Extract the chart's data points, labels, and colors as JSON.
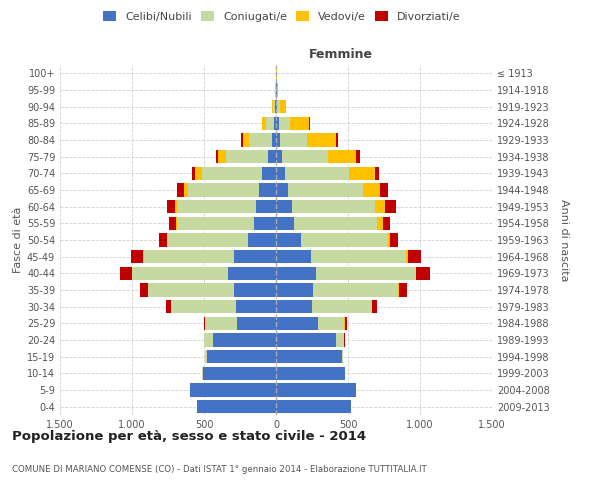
{
  "age_groups": [
    "0-4",
    "5-9",
    "10-14",
    "15-19",
    "20-24",
    "25-29",
    "30-34",
    "35-39",
    "40-44",
    "45-49",
    "50-54",
    "55-59",
    "60-64",
    "65-69",
    "70-74",
    "75-79",
    "80-84",
    "85-89",
    "90-94",
    "95-99",
    "100+"
  ],
  "birth_years": [
    "2009-2013",
    "2004-2008",
    "1999-2003",
    "1994-1998",
    "1989-1993",
    "1984-1988",
    "1979-1983",
    "1974-1978",
    "1969-1973",
    "1964-1968",
    "1959-1963",
    "1954-1958",
    "1949-1953",
    "1944-1948",
    "1939-1943",
    "1934-1938",
    "1929-1933",
    "1924-1928",
    "1919-1923",
    "1914-1918",
    "≤ 1913"
  ],
  "male_celibi": [
    550,
    600,
    510,
    480,
    440,
    270,
    280,
    290,
    330,
    290,
    195,
    155,
    140,
    120,
    100,
    55,
    25,
    15,
    8,
    3,
    2
  ],
  "male_coniugati": [
    0,
    0,
    2,
    10,
    60,
    220,
    450,
    600,
    670,
    630,
    560,
    530,
    545,
    490,
    415,
    295,
    160,
    55,
    15,
    3,
    1
  ],
  "male_vedovi": [
    0,
    0,
    0,
    0,
    1,
    2,
    1,
    2,
    2,
    5,
    5,
    10,
    15,
    30,
    50,
    50,
    45,
    25,
    5,
    1,
    0
  ],
  "male_divorziati": [
    0,
    0,
    0,
    1,
    2,
    10,
    30,
    50,
    80,
    80,
    50,
    45,
    55,
    45,
    20,
    20,
    15,
    5,
    1,
    0,
    0
  ],
  "female_celibi": [
    520,
    555,
    480,
    455,
    415,
    290,
    250,
    260,
    280,
    240,
    175,
    125,
    110,
    85,
    65,
    40,
    25,
    20,
    10,
    5,
    2
  ],
  "female_coniugati": [
    0,
    0,
    2,
    10,
    55,
    185,
    415,
    590,
    690,
    665,
    600,
    575,
    575,
    520,
    445,
    320,
    190,
    80,
    20,
    5,
    1
  ],
  "female_vedovi": [
    0,
    0,
    0,
    1,
    3,
    5,
    5,
    5,
    5,
    15,
    20,
    40,
    70,
    115,
    175,
    195,
    200,
    130,
    40,
    5,
    1
  ],
  "female_divorziati": [
    0,
    0,
    0,
    1,
    3,
    10,
    30,
    55,
    95,
    90,
    55,
    55,
    75,
    55,
    30,
    25,
    15,
    5,
    2,
    0,
    0
  ],
  "colors": {
    "celibi": "#4472c4",
    "coniugati": "#c5d9a0",
    "vedovi": "#ffc000",
    "divorziati": "#c00000"
  },
  "xlim": 1500,
  "xticks": [
    -1500,
    -1000,
    -500,
    0,
    500,
    1000,
    1500
  ],
  "xtick_labels": [
    "1.500",
    "1.000",
    "500",
    "0",
    "500",
    "1.000",
    "1.500"
  ],
  "title": "Popolazione per età, sesso e stato civile - 2014",
  "subtitle": "COMUNE DI MARIANO COMENSE (CO) - Dati ISTAT 1° gennaio 2014 - Elaborazione TUTTITALIA.IT",
  "xlabel_right": "Femmine",
  "ylabel_left": "Fasce di età",
  "ylabel_right": "Anni di nascita",
  "background_color": "#ffffff",
  "grid_color": "#cccccc"
}
